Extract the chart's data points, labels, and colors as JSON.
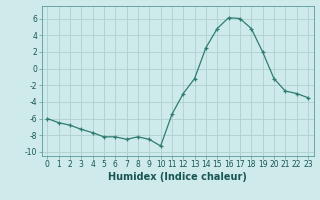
{
  "x": [
    0,
    1,
    2,
    3,
    4,
    5,
    6,
    7,
    8,
    9,
    10,
    11,
    12,
    13,
    14,
    15,
    16,
    17,
    18,
    19,
    20,
    21,
    22,
    23
  ],
  "y": [
    -6.0,
    -6.5,
    -6.8,
    -7.3,
    -7.7,
    -8.2,
    -8.2,
    -8.5,
    -8.2,
    -8.5,
    -9.3,
    -5.5,
    -3.0,
    -1.2,
    2.5,
    4.8,
    6.1,
    6.0,
    4.8,
    2.0,
    -1.2,
    -2.7,
    -3.0,
    -3.5
  ],
  "line_color": "#2e7d6e",
  "marker": "+",
  "markersize": 3,
  "linewidth": 0.9,
  "background_color": "#ceeaea",
  "grid_color": "#b0d0d0",
  "xlabel": "Humidex (Indice chaleur)",
  "xlabel_fontsize": 7,
  "ylim": [
    -10.5,
    7.5
  ],
  "xlim": [
    -0.5,
    23.5
  ],
  "yticks": [
    -10,
    -8,
    -6,
    -4,
    -2,
    0,
    2,
    4,
    6
  ],
  "xticks": [
    0,
    1,
    2,
    3,
    4,
    5,
    6,
    7,
    8,
    9,
    10,
    11,
    12,
    13,
    14,
    15,
    16,
    17,
    18,
    19,
    20,
    21,
    22,
    23
  ],
  "tick_fontsize": 5.5
}
